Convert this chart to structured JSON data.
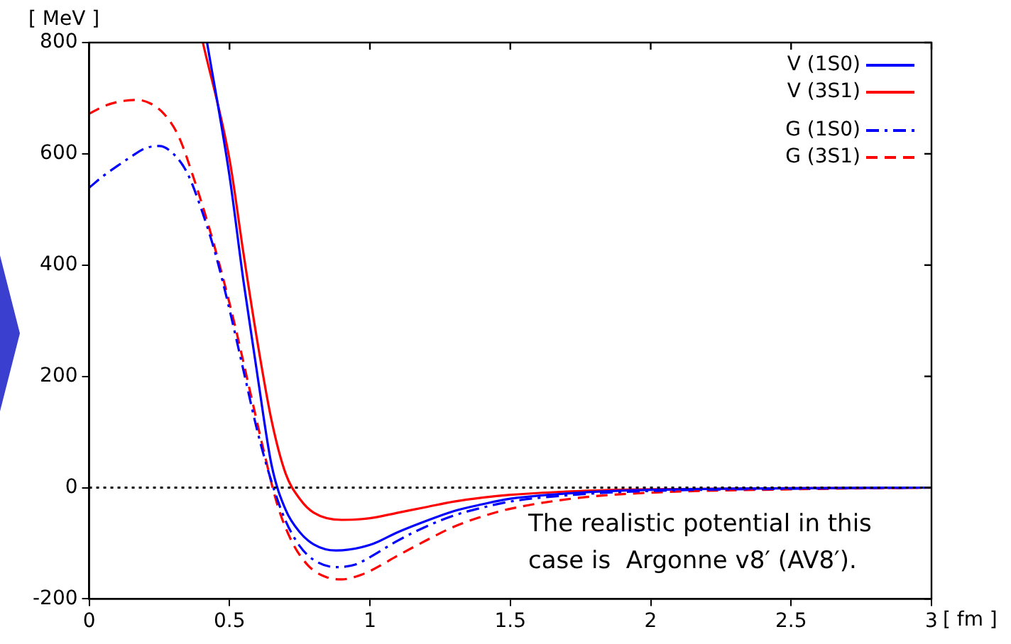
{
  "chart_data": {
    "type": "line",
    "xlabel": "[ fm ]",
    "ylabel": "[ MeV ]",
    "xlim": [
      0,
      3
    ],
    "xticks": [
      0,
      0.5,
      1,
      1.5,
      2,
      2.5,
      3
    ],
    "ylim": [
      -200,
      800
    ],
    "yticks": [
      -200,
      0,
      200,
      400,
      600,
      800
    ],
    "grid": false,
    "legend": "top right",
    "marker": "none",
    "ref_lines": [
      {
        "axis": "y",
        "value": 0,
        "color": "#000000",
        "line_style": "dotted"
      }
    ],
    "annotations": [
      "The realistic potential in this\ncase is  Argonne v8′ (AV8′)."
    ],
    "series": [
      {
        "name": "V (1S0)",
        "color": "#0000ff",
        "line_style": "solid",
        "x": [
          0.42,
          0.5,
          0.55,
          0.6,
          0.65,
          0.7,
          0.75,
          0.8,
          0.88,
          1.0,
          1.1,
          1.2,
          1.3,
          1.4,
          1.5,
          1.75,
          2,
          2.5,
          3
        ],
        "values": [
          800,
          560,
          370,
          200,
          40,
          -40,
          -80,
          -102,
          -113,
          -103,
          -80,
          -60,
          -42,
          -30,
          -20,
          -9,
          -4,
          -1,
          0
        ]
      },
      {
        "name": "V (3S1)",
        "color": "#ff0000",
        "line_style": "solid",
        "x": [
          0.405,
          0.5,
          0.55,
          0.6,
          0.65,
          0.7,
          0.75,
          0.8,
          0.9,
          1.0,
          1.1,
          1.2,
          1.3,
          1.4,
          1.5,
          1.75,
          2,
          2.5,
          3
        ],
        "values": [
          800,
          590,
          420,
          260,
          120,
          25,
          -20,
          -45,
          -58,
          -55,
          -45,
          -35,
          -25,
          -18,
          -13,
          -6,
          -3,
          -1,
          0
        ]
      },
      {
        "name": "G (1S0)",
        "color": "#0000ff",
        "line_style": "dashdot",
        "x": [
          0,
          0.05,
          0.1,
          0.15,
          0.2,
          0.25,
          0.3,
          0.35,
          0.4,
          0.45,
          0.5,
          0.55,
          0.6,
          0.65,
          0.7,
          0.75,
          0.8,
          0.88,
          0.95,
          1.0,
          1.1,
          1.2,
          1.3,
          1.4,
          1.5,
          1.75,
          2,
          2.5,
          3
        ],
        "values": [
          539,
          560,
          578,
          595,
          610,
          614,
          600,
          565,
          500,
          420,
          320,
          210,
          100,
          10,
          -60,
          -105,
          -130,
          -143,
          -138,
          -125,
          -95,
          -70,
          -50,
          -36,
          -25,
          -12,
          -6,
          -2,
          0
        ]
      },
      {
        "name": "G (3S1)",
        "color": "#ff0000",
        "line_style": "dashed",
        "x": [
          0,
          0.05,
          0.1,
          0.17,
          0.22,
          0.27,
          0.32,
          0.37,
          0.42,
          0.47,
          0.52,
          0.57,
          0.62,
          0.67,
          0.72,
          0.78,
          0.84,
          0.9,
          0.95,
          1.0,
          1.1,
          1.2,
          1.3,
          1.4,
          1.5,
          1.75,
          2,
          2.5,
          3
        ],
        "values": [
          672,
          685,
          693,
          697,
          690,
          670,
          630,
          560,
          480,
          390,
          290,
          180,
          70,
          -30,
          -95,
          -140,
          -160,
          -165,
          -160,
          -150,
          -122,
          -95,
          -70,
          -52,
          -38,
          -18,
          -9,
          -3,
          0
        ]
      }
    ]
  }
}
